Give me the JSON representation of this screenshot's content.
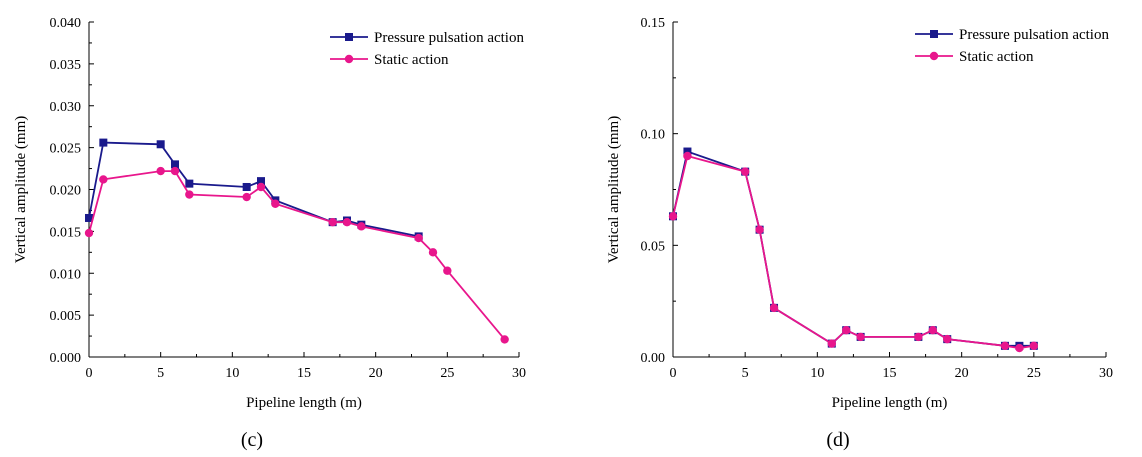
{
  "chart_data": [
    {
      "type": "line",
      "panel_label": "(c)",
      "xlabel": "Pipeline length (m)",
      "ylabel": "Vertical amplitude (mm)",
      "xlim": [
        0,
        30
      ],
      "ylim": [
        0,
        0.04
      ],
      "xticks": [
        "0",
        "5",
        "10",
        "15",
        "20",
        "25",
        "30"
      ],
      "yticks": [
        "0.000",
        "0.005",
        "0.010",
        "0.015",
        "0.020",
        "0.025",
        "0.030",
        "0.035",
        "0.040"
      ],
      "grid": false,
      "legend_position": "top-right",
      "series": [
        {
          "name": "Pressure pulsation action",
          "color": "#1a1a8c",
          "marker": "square",
          "x": [
            0,
            1,
            5,
            6,
            7,
            11,
            12,
            13,
            17,
            18,
            19,
            23
          ],
          "y": [
            0.0166,
            0.0256,
            0.0254,
            0.023,
            0.0207,
            0.0203,
            0.021,
            0.0187,
            0.0161,
            0.0163,
            0.0158,
            0.0144
          ]
        },
        {
          "name": "Static action",
          "color": "#e8168c",
          "marker": "circle",
          "x": [
            0,
            1,
            5,
            6,
            7,
            11,
            12,
            13,
            17,
            18,
            19,
            23,
            24,
            25,
            29
          ],
          "y": [
            0.0148,
            0.0212,
            0.0222,
            0.0222,
            0.0194,
            0.0191,
            0.0203,
            0.0183,
            0.0161,
            0.0161,
            0.0156,
            0.0142,
            0.0125,
            0.0103,
            0.0021
          ]
        }
      ]
    },
    {
      "type": "line",
      "panel_label": "(d)",
      "xlabel": "Pipeline length (m)",
      "ylabel": "Vertical amplitude (mm)",
      "xlim": [
        0,
        30
      ],
      "ylim": [
        0,
        0.15
      ],
      "xticks": [
        "0",
        "5",
        "10",
        "15",
        "20",
        "25",
        "30"
      ],
      "yticks": [
        "0.00",
        "0.05",
        "0.10",
        "0.15"
      ],
      "grid": false,
      "legend_position": "top-right",
      "series": [
        {
          "name": "Pressure pulsation action",
          "color": "#1a1a8c",
          "marker": "square",
          "x": [
            0,
            1,
            5,
            6,
            7,
            11,
            12,
            13,
            17,
            18,
            19,
            23,
            24,
            25
          ],
          "y": [
            0.063,
            0.092,
            0.083,
            0.057,
            0.022,
            0.006,
            0.012,
            0.009,
            0.009,
            0.012,
            0.008,
            0.005,
            0.005,
            0.005
          ]
        },
        {
          "name": "Static action",
          "color": "#e8168c",
          "marker": "circle",
          "x": [
            0,
            1,
            5,
            6,
            7,
            11,
            12,
            13,
            17,
            18,
            19,
            23,
            24,
            25
          ],
          "y": [
            0.063,
            0.09,
            0.083,
            0.057,
            0.022,
            0.006,
            0.012,
            0.009,
            0.009,
            0.012,
            0.008,
            0.005,
            0.004,
            0.005
          ]
        }
      ]
    }
  ]
}
